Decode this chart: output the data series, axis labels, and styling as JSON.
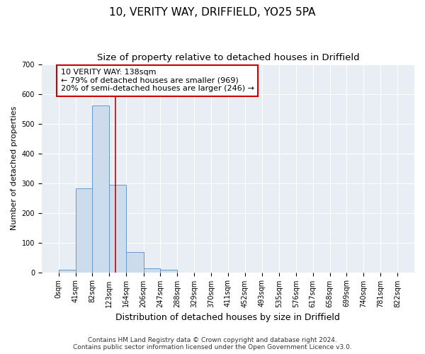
{
  "title": "10, VERITY WAY, DRIFFIELD, YO25 5PA",
  "subtitle": "Size of property relative to detached houses in Driffield",
  "xlabel": "Distribution of detached houses by size in Driffield",
  "ylabel": "Number of detached properties",
  "footnote1": "Contains HM Land Registry data © Crown copyright and database right 2024.",
  "footnote2": "Contains public sector information licensed under the Open Government Licence v3.0.",
  "bar_edges": [
    0,
    41,
    82,
    123,
    164,
    206,
    247,
    288,
    329,
    370,
    411,
    452,
    493,
    535,
    576,
    617,
    658,
    699,
    740,
    781,
    822
  ],
  "bar_heights": [
    8,
    283,
    560,
    295,
    68,
    13,
    9,
    0,
    0,
    0,
    0,
    0,
    0,
    0,
    0,
    0,
    0,
    0,
    0,
    0
  ],
  "bar_color": "#ccdcec",
  "bar_edgecolor": "#6699cc",
  "red_line_x": 138,
  "ylim": [
    0,
    700
  ],
  "yticks": [
    0,
    100,
    200,
    300,
    400,
    500,
    600,
    700
  ],
  "annotation_line1": "10 VERITY WAY: 138sqm",
  "annotation_line2": "← 79% of detached houses are smaller (969)",
  "annotation_line3": "20% of semi-detached houses are larger (246) →",
  "annotation_box_facecolor": "#ffffff",
  "annotation_box_edgecolor": "#cc0000",
  "background_color": "#e8eef4",
  "plot_bg_color": "#e8eef4",
  "grid_color": "#ffffff",
  "title_fontsize": 11,
  "subtitle_fontsize": 9.5,
  "xlabel_fontsize": 9,
  "ylabel_fontsize": 8,
  "tick_fontsize": 7,
  "annotation_fontsize": 8,
  "footnote_fontsize": 6.5
}
